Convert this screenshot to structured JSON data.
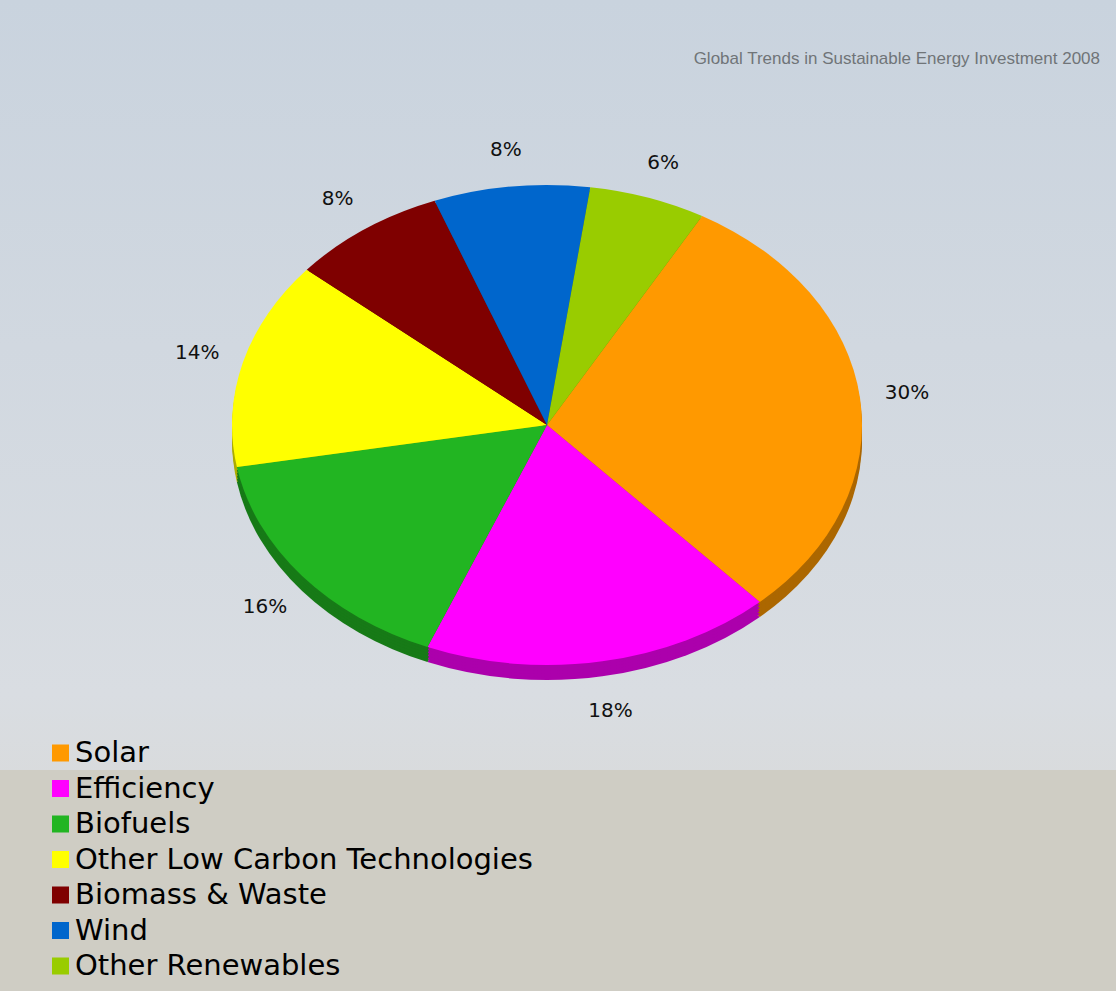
{
  "chart_data": {
    "type": "pie",
    "title": "Global Trends in Sustainable Energy Investment 2008",
    "categories": [
      "Solar",
      "Efficiency",
      "Biofuels",
      "Other Low Carbon Technologies",
      "Biomass & Waste",
      "Wind",
      "Other Renewables"
    ],
    "values": [
      30,
      18,
      16,
      14,
      8,
      8,
      6
    ],
    "value_labels": [
      "30%",
      "18%",
      "16%",
      "14%",
      "8%",
      "8%",
      "6%"
    ],
    "colors": [
      "#ff9900",
      "#ff00ff",
      "#22b522",
      "#ffff00",
      "#7f0000",
      "#0066cc",
      "#99cc00"
    ],
    "data_labels": true,
    "legend": "bottom-left"
  }
}
